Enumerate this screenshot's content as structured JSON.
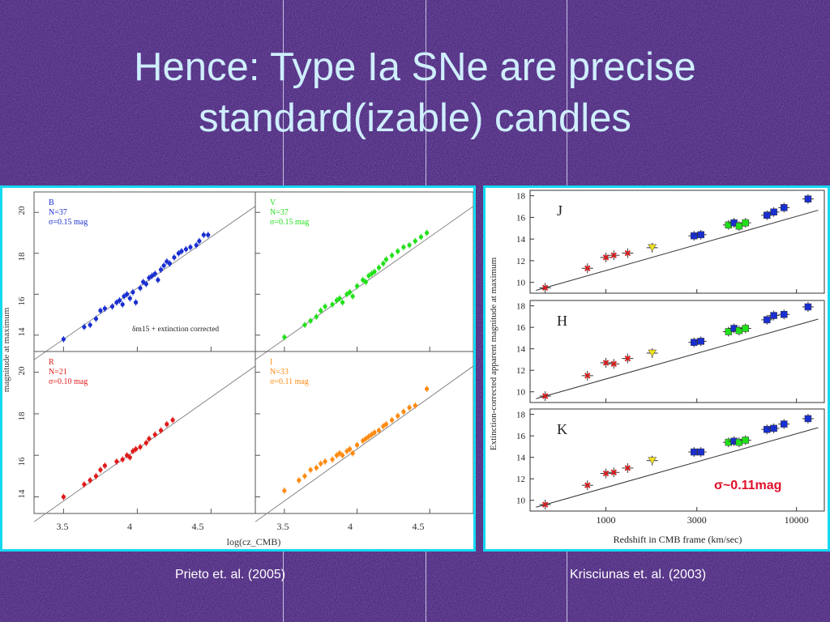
{
  "slide": {
    "title_line1": "Hence: Type Ia SNe are precise",
    "title_line2": "standard(izable) candles",
    "caption_left": "Prieto et. al. (2005)",
    "caption_right": "Krisciunas et. al. (2003)"
  },
  "colors": {
    "background": "#3b1f6e",
    "title": "#cfeefc",
    "frame": "#15d8f0",
    "B": "#1a2fd0",
    "V": "#22e01a",
    "R": "#e01a1a",
    "I": "#ff8a10",
    "sigma": "#e0102a"
  },
  "chart_data": [
    {
      "type": "scatter",
      "panel": "B",
      "label": "B",
      "n_text": "N=37",
      "sigma_text": "σ=0.15 mag",
      "note": "δm15 + extinction corrected",
      "ylabel": "magnitude at maximum",
      "xlabel": "log(cz_CMB)",
      "xlim": [
        3.3,
        4.8
      ],
      "ylim": [
        13.2,
        21.0
      ],
      "xticks": [
        "3.5",
        "4",
        "4.5"
      ],
      "yticks": [
        "14",
        "16",
        "18",
        "20"
      ],
      "points": [
        [
          3.5,
          13.8
        ],
        [
          3.64,
          14.4
        ],
        [
          3.68,
          14.5
        ],
        [
          3.72,
          14.8
        ],
        [
          3.75,
          15.2
        ],
        [
          3.78,
          15.3
        ],
        [
          3.83,
          15.4
        ],
        [
          3.86,
          15.6
        ],
        [
          3.88,
          15.7
        ],
        [
          3.9,
          15.5
        ],
        [
          3.91,
          15.9
        ],
        [
          3.93,
          16.0
        ],
        [
          3.95,
          15.8
        ],
        [
          3.97,
          16.1
        ],
        [
          3.99,
          15.6
        ],
        [
          4.02,
          16.3
        ],
        [
          4.04,
          16.6
        ],
        [
          4.06,
          16.5
        ],
        [
          4.08,
          16.8
        ],
        [
          4.1,
          16.9
        ],
        [
          4.12,
          17.0
        ],
        [
          4.14,
          16.7
        ],
        [
          4.16,
          17.2
        ],
        [
          4.18,
          17.4
        ],
        [
          4.2,
          17.6
        ],
        [
          4.22,
          17.5
        ],
        [
          4.25,
          17.8
        ],
        [
          4.28,
          18.0
        ],
        [
          4.3,
          18.1
        ],
        [
          4.33,
          18.2
        ],
        [
          4.36,
          18.3
        ],
        [
          4.4,
          18.4
        ],
        [
          4.42,
          18.6
        ],
        [
          4.45,
          18.9
        ],
        [
          4.48,
          18.9
        ]
      ]
    },
    {
      "type": "scatter",
      "panel": "V",
      "label": "V",
      "n_text": "N=37",
      "sigma_text": "σ=0.15 mag",
      "xlim": [
        3.3,
        4.8
      ],
      "ylim": [
        13.2,
        21.0
      ],
      "points": [
        [
          3.5,
          13.9
        ],
        [
          3.64,
          14.5
        ],
        [
          3.68,
          14.7
        ],
        [
          3.72,
          14.9
        ],
        [
          3.75,
          15.2
        ],
        [
          3.78,
          15.4
        ],
        [
          3.83,
          15.5
        ],
        [
          3.86,
          15.7
        ],
        [
          3.88,
          15.8
        ],
        [
          3.9,
          15.6
        ],
        [
          3.93,
          16.0
        ],
        [
          3.95,
          16.1
        ],
        [
          3.97,
          15.9
        ],
        [
          4.0,
          16.4
        ],
        [
          4.04,
          16.7
        ],
        [
          4.06,
          16.6
        ],
        [
          4.08,
          16.9
        ],
        [
          4.1,
          17.0
        ],
        [
          4.12,
          17.1
        ],
        [
          4.15,
          17.3
        ],
        [
          4.18,
          17.5
        ],
        [
          4.2,
          17.7
        ],
        [
          4.24,
          17.9
        ],
        [
          4.28,
          18.1
        ],
        [
          4.32,
          18.3
        ],
        [
          4.36,
          18.4
        ],
        [
          4.4,
          18.6
        ],
        [
          4.44,
          18.8
        ],
        [
          4.48,
          19.0
        ]
      ]
    },
    {
      "type": "scatter",
      "panel": "R",
      "label": "R",
      "n_text": "N=21",
      "sigma_text": "σ=0.10 mag",
      "xlim": [
        3.3,
        4.8
      ],
      "ylim": [
        13.2,
        21.0
      ],
      "points": [
        [
          3.5,
          14.0
        ],
        [
          3.64,
          14.6
        ],
        [
          3.68,
          14.8
        ],
        [
          3.72,
          15.0
        ],
        [
          3.75,
          15.3
        ],
        [
          3.78,
          15.5
        ],
        [
          3.86,
          15.7
        ],
        [
          3.9,
          15.8
        ],
        [
          3.93,
          16.0
        ],
        [
          3.95,
          15.9
        ],
        [
          3.97,
          16.2
        ],
        [
          3.99,
          16.3
        ],
        [
          4.02,
          16.4
        ],
        [
          4.06,
          16.6
        ],
        [
          4.08,
          16.8
        ],
        [
          4.12,
          17.0
        ],
        [
          4.16,
          17.2
        ],
        [
          4.2,
          17.5
        ],
        [
          4.24,
          17.7
        ]
      ]
    },
    {
      "type": "scatter",
      "panel": "I",
      "label": "I",
      "n_text": "N=33",
      "sigma_text": "σ=0.11 mag",
      "xlim": [
        3.3,
        4.8
      ],
      "ylim": [
        13.2,
        21.0
      ],
      "points": [
        [
          3.5,
          14.3
        ],
        [
          3.6,
          14.8
        ],
        [
          3.64,
          15.0
        ],
        [
          3.68,
          15.3
        ],
        [
          3.72,
          15.4
        ],
        [
          3.75,
          15.6
        ],
        [
          3.78,
          15.7
        ],
        [
          3.83,
          15.8
        ],
        [
          3.86,
          16.0
        ],
        [
          3.88,
          16.1
        ],
        [
          3.9,
          16.0
        ],
        [
          3.93,
          16.2
        ],
        [
          3.95,
          16.3
        ],
        [
          3.97,
          16.1
        ],
        [
          4.0,
          16.5
        ],
        [
          4.04,
          16.7
        ],
        [
          4.06,
          16.8
        ],
        [
          4.08,
          16.9
        ],
        [
          4.1,
          17.0
        ],
        [
          4.12,
          17.1
        ],
        [
          4.15,
          17.2
        ],
        [
          4.18,
          17.4
        ],
        [
          4.2,
          17.5
        ],
        [
          4.24,
          17.7
        ],
        [
          4.28,
          17.9
        ],
        [
          4.32,
          18.1
        ],
        [
          4.36,
          18.3
        ],
        [
          4.4,
          18.4
        ],
        [
          4.48,
          19.2
        ]
      ]
    },
    {
      "type": "scatter",
      "panel": "J",
      "label": "J",
      "ylabel": "Extinction-corrected apparent magnitude at maximum",
      "xlabel": "Redshift in CMB frame (km/sec)",
      "x_scale": "log",
      "xlim": [
        400,
        14000
      ],
      "ylim": [
        9,
        18.5
      ],
      "xticks": [
        "1000",
        "3000",
        "10000"
      ],
      "yticks": [
        "10",
        "12",
        "14",
        "16",
        "18"
      ],
      "points": [
        {
          "x": 480,
          "y": 9.5,
          "c": "R"
        },
        {
          "x": 800,
          "y": 11.3,
          "c": "R"
        },
        {
          "x": 1000,
          "y": 12.3,
          "c": "R"
        },
        {
          "x": 1100,
          "y": 12.5,
          "c": "R"
        },
        {
          "x": 1300,
          "y": 12.7,
          "c": "R"
        },
        {
          "x": 1750,
          "y": 13.2,
          "c": "Y"
        },
        {
          "x": 2900,
          "y": 14.3,
          "c": "B"
        },
        {
          "x": 3150,
          "y": 14.4,
          "c": "B"
        },
        {
          "x": 4400,
          "y": 15.3,
          "c": "G"
        },
        {
          "x": 4700,
          "y": 15.5,
          "c": "B"
        },
        {
          "x": 5000,
          "y": 15.2,
          "c": "G"
        },
        {
          "x": 5400,
          "y": 15.5,
          "c": "G"
        },
        {
          "x": 7000,
          "y": 16.2,
          "c": "B"
        },
        {
          "x": 7600,
          "y": 16.5,
          "c": "B"
        },
        {
          "x": 8600,
          "y": 16.9,
          "c": "B"
        },
        {
          "x": 11500,
          "y": 17.7,
          "c": "B"
        }
      ]
    },
    {
      "type": "scatter",
      "panel": "H",
      "label": "H",
      "x_scale": "log",
      "xlim": [
        400,
        14000
      ],
      "ylim": [
        9,
        18.5
      ],
      "points": [
        {
          "x": 480,
          "y": 9.6,
          "c": "R"
        },
        {
          "x": 800,
          "y": 11.5,
          "c": "R"
        },
        {
          "x": 1000,
          "y": 12.7,
          "c": "R"
        },
        {
          "x": 1100,
          "y": 12.6,
          "c": "R"
        },
        {
          "x": 1300,
          "y": 13.1,
          "c": "R"
        },
        {
          "x": 1750,
          "y": 13.6,
          "c": "Y"
        },
        {
          "x": 2900,
          "y": 14.6,
          "c": "B"
        },
        {
          "x": 3150,
          "y": 14.7,
          "c": "B"
        },
        {
          "x": 4400,
          "y": 15.6,
          "c": "G"
        },
        {
          "x": 4700,
          "y": 15.9,
          "c": "B"
        },
        {
          "x": 5000,
          "y": 15.7,
          "c": "G"
        },
        {
          "x": 5400,
          "y": 15.9,
          "c": "G"
        },
        {
          "x": 7000,
          "y": 16.7,
          "c": "B"
        },
        {
          "x": 7600,
          "y": 17.1,
          "c": "B"
        },
        {
          "x": 8600,
          "y": 17.2,
          "c": "B"
        },
        {
          "x": 11500,
          "y": 17.9,
          "c": "B"
        }
      ]
    },
    {
      "type": "scatter",
      "panel": "K",
      "label": "K",
      "annotation": "σ~0.11mag",
      "x_scale": "log",
      "xlim": [
        400,
        14000
      ],
      "ylim": [
        9,
        18.5
      ],
      "points": [
        {
          "x": 480,
          "y": 9.6,
          "c": "R"
        },
        {
          "x": 800,
          "y": 11.4,
          "c": "R"
        },
        {
          "x": 1000,
          "y": 12.5,
          "c": "R"
        },
        {
          "x": 1100,
          "y": 12.6,
          "c": "R"
        },
        {
          "x": 1300,
          "y": 13.0,
          "c": "R"
        },
        {
          "x": 1750,
          "y": 13.7,
          "c": "Y"
        },
        {
          "x": 2900,
          "y": 14.5,
          "c": "B"
        },
        {
          "x": 3150,
          "y": 14.5,
          "c": "B"
        },
        {
          "x": 4400,
          "y": 15.4,
          "c": "G"
        },
        {
          "x": 4700,
          "y": 15.5,
          "c": "B"
        },
        {
          "x": 5000,
          "y": 15.4,
          "c": "G"
        },
        {
          "x": 5400,
          "y": 15.6,
          "c": "G"
        },
        {
          "x": 7000,
          "y": 16.6,
          "c": "B"
        },
        {
          "x": 7600,
          "y": 16.7,
          "c": "B"
        },
        {
          "x": 8600,
          "y": 17.1,
          "c": "B"
        },
        {
          "x": 11500,
          "y": 17.6,
          "c": "B"
        }
      ]
    }
  ]
}
